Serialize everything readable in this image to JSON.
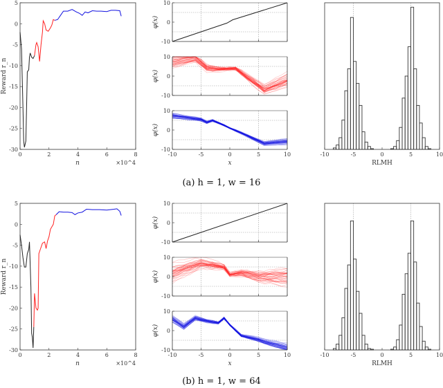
{
  "captions": [
    "(a) h = 1, w = 16",
    "(b) h = 1, w = 64"
  ],
  "colors": {
    "initial": "#222222",
    "middle": "#ff2020",
    "final": "#1010e0",
    "hist": "#333333"
  },
  "chart_data": [
    {
      "type": "line",
      "panel": "reward-a",
      "xlabel": "n",
      "ylabel": "Reward r_n",
      "x_multiplier": "×10^4",
      "xlim": [
        0,
        8
      ],
      "ylim": [
        -30,
        5
      ],
      "xticks": [
        0,
        2,
        4,
        6,
        8
      ],
      "yticks": [
        5,
        0,
        -5,
        -10,
        -15,
        -20,
        -25,
        -30
      ],
      "series": [
        {
          "color": "initial",
          "points": [
            [
              0,
              -2
            ],
            [
              0.1,
              -6
            ],
            [
              0.2,
              -20
            ],
            [
              0.25,
              -28
            ],
            [
              0.3,
              -29.5
            ],
            [
              0.4,
              -28
            ],
            [
              0.45,
              -20
            ],
            [
              0.5,
              -11.5
            ],
            [
              0.6,
              -11
            ],
            [
              0.65,
              -8
            ],
            [
              0.7,
              -7
            ],
            [
              0.8,
              -8
            ],
            [
              0.9,
              -8.3
            ],
            [
              1.0,
              -7.6
            ]
          ]
        },
        {
          "color": "middle",
          "points": [
            [
              1.0,
              -7.6
            ],
            [
              1.1,
              -5
            ],
            [
              1.15,
              -4.5
            ],
            [
              1.25,
              -5.5
            ],
            [
              1.35,
              -9
            ],
            [
              1.45,
              -5
            ],
            [
              1.55,
              -2
            ],
            [
              1.6,
              0.7
            ],
            [
              1.7,
              0
            ],
            [
              1.8,
              -1.5
            ],
            [
              1.95,
              -1.8
            ],
            [
              2.1,
              -1
            ],
            [
              2.2,
              -0.3
            ],
            [
              2.3,
              1
            ],
            [
              2.4,
              0.8
            ]
          ]
        },
        {
          "color": "final",
          "points": [
            [
              2.4,
              0.8
            ],
            [
              2.6,
              1
            ],
            [
              2.8,
              2
            ],
            [
              3.0,
              3
            ],
            [
              3.3,
              3
            ],
            [
              3.6,
              3.4
            ],
            [
              3.9,
              2.8
            ],
            [
              4.1,
              2.5
            ],
            [
              4.3,
              2
            ],
            [
              4.5,
              2.8
            ],
            [
              4.7,
              2.6
            ],
            [
              5.0,
              3.1
            ],
            [
              5.3,
              3
            ],
            [
              5.6,
              3
            ],
            [
              6.0,
              2.9
            ],
            [
              6.3,
              3.2
            ],
            [
              6.6,
              3.2
            ],
            [
              6.9,
              3.1
            ],
            [
              7.0,
              1.8
            ]
          ]
        }
      ]
    },
    {
      "type": "line",
      "panel": "phi-a",
      "xlabel": "x",
      "ylabel": "φ(x)",
      "xlim": [
        -10,
        10
      ],
      "ylim": [
        -10,
        10
      ],
      "xticks": [
        -10,
        -5,
        0,
        5,
        10
      ],
      "yticks": [
        10,
        0,
        -10
      ],
      "subplots": [
        {
          "color": "initial",
          "spread": 0,
          "mean": [
            [
              -10,
              -10
            ],
            [
              -0.5,
              -0.5
            ],
            [
              0.5,
              1.2
            ],
            [
              10,
              10
            ]
          ]
        },
        {
          "color": "middle",
          "spread": 3,
          "mean": [
            [
              -10,
              7
            ],
            [
              -6,
              9
            ],
            [
              -4,
              4
            ],
            [
              -2,
              3.5
            ],
            [
              1,
              3.8
            ],
            [
              6,
              -7
            ],
            [
              10,
              -2
            ]
          ]
        },
        {
          "color": "final",
          "spread": 1.2,
          "mean": [
            [
              -10,
              7.5
            ],
            [
              -5,
              5.5
            ],
            [
              -4,
              4
            ],
            [
              -3,
              5
            ],
            [
              -1,
              2.5
            ],
            [
              0,
              1
            ],
            [
              2,
              -1.5
            ],
            [
              6,
              -7
            ],
            [
              10,
              -6
            ]
          ]
        }
      ]
    },
    {
      "type": "bar",
      "panel": "hist-a",
      "xlabel": "RLMH",
      "xlim": [
        -10,
        10
      ],
      "xticks": [
        -10,
        -5,
        0,
        5,
        10
      ],
      "bin_start": -8.5,
      "bin_width": 0.5,
      "values": [
        0.01,
        0.03,
        0.08,
        0.2,
        0.4,
        0.55,
        0.9,
        0.6,
        0.45,
        0.3,
        0.12,
        0.05,
        0.02,
        0.005,
        0,
        0,
        0,
        0,
        0,
        0,
        0.005,
        0.02,
        0.06,
        0.15,
        0.35,
        0.5,
        0.7,
        0.97,
        0.55,
        0.3,
        0.18,
        0.08,
        0.02,
        0.005
      ]
    },
    {
      "type": "line",
      "panel": "reward-b",
      "xlabel": "n",
      "ylabel": "Reward r_n",
      "x_multiplier": "×10^4",
      "xlim": [
        0,
        8
      ],
      "ylim": [
        -30,
        5
      ],
      "xticks": [
        0,
        2,
        4,
        6,
        8
      ],
      "yticks": [
        5,
        0,
        -5,
        -10,
        -15,
        -20,
        -25,
        -30
      ],
      "series": [
        {
          "color": "initial",
          "points": [
            [
              0,
              -2.5
            ],
            [
              0.1,
              -5
            ],
            [
              0.2,
              -8
            ],
            [
              0.3,
              -10.2
            ],
            [
              0.4,
              -10.2
            ],
            [
              0.5,
              -7
            ],
            [
              0.6,
              -6
            ],
            [
              0.65,
              -4.2
            ],
            [
              0.75,
              -15
            ],
            [
              0.8,
              -26
            ],
            [
              0.85,
              -27
            ],
            [
              0.9,
              -29.5
            ],
            [
              0.95,
              -24.5
            ]
          ]
        },
        {
          "color": "middle",
          "points": [
            [
              0.95,
              -24.5
            ],
            [
              1.0,
              -16.5
            ],
            [
              1.1,
              -20
            ],
            [
              1.2,
              -20.5
            ],
            [
              1.25,
              -20
            ],
            [
              1.3,
              -7
            ],
            [
              1.4,
              -6
            ],
            [
              1.55,
              -4.5
            ],
            [
              1.7,
              -4.2
            ],
            [
              1.8,
              -5.8
            ],
            [
              1.9,
              -4
            ],
            [
              2.0,
              -3
            ],
            [
              2.1,
              -1.2
            ],
            [
              2.3,
              0
            ],
            [
              2.4,
              2
            ],
            [
              2.5,
              2.3
            ]
          ]
        },
        {
          "color": "final",
          "points": [
            [
              2.5,
              2.3
            ],
            [
              2.7,
              3
            ],
            [
              3.0,
              2.9
            ],
            [
              3.3,
              2.9
            ],
            [
              3.6,
              2.8
            ],
            [
              3.8,
              2.3
            ],
            [
              4.0,
              2.7
            ],
            [
              4.3,
              2.9
            ],
            [
              4.6,
              3.6
            ],
            [
              5.0,
              3.5
            ],
            [
              5.5,
              3.5
            ],
            [
              6.0,
              3.4
            ],
            [
              6.5,
              3.6
            ],
            [
              6.7,
              3.7
            ],
            [
              6.9,
              3.1
            ],
            [
              7.0,
              2.1
            ]
          ]
        }
      ]
    },
    {
      "type": "line",
      "panel": "phi-b",
      "xlabel": "x",
      "ylabel": "φ(x)",
      "xlim": [
        -10,
        10
      ],
      "ylim": [
        -10,
        10
      ],
      "xticks": [
        -10,
        -5,
        0,
        5,
        10
      ],
      "yticks": [
        10,
        0,
        -10
      ],
      "subplots": [
        {
          "color": "initial",
          "spread": 0,
          "mean": [
            [
              -10,
              -10
            ],
            [
              10,
              10
            ]
          ]
        },
        {
          "color": "middle",
          "spread": 4,
          "mean": [
            [
              -10,
              2
            ],
            [
              -5,
              7
            ],
            [
              -3,
              6
            ],
            [
              -1,
              5
            ],
            [
              0,
              1
            ],
            [
              2,
              2
            ],
            [
              5,
              0
            ],
            [
              6,
              0
            ],
            [
              10,
              0
            ]
          ]
        },
        {
          "color": "final",
          "spread": 1.5,
          "mean": [
            [
              -10,
              6
            ],
            [
              -8,
              2
            ],
            [
              -6,
              6.5
            ],
            [
              -4,
              5
            ],
            [
              -2,
              4
            ],
            [
              -1,
              6.5
            ],
            [
              0,
              3
            ],
            [
              2,
              -2.5
            ],
            [
              5,
              -4.5
            ],
            [
              6,
              -5.5
            ],
            [
              10,
              -8.5
            ]
          ]
        }
      ]
    },
    {
      "type": "bar",
      "panel": "hist-b",
      "xlabel": "RLMH",
      "xlim": [
        -10,
        10
      ],
      "xticks": [
        -10,
        -5,
        0,
        5,
        10
      ],
      "bin_start": -8.5,
      "bin_width": 0.5,
      "values": [
        0.01,
        0.04,
        0.1,
        0.22,
        0.42,
        0.58,
        0.88,
        0.62,
        0.4,
        0.25,
        0.1,
        0.04,
        0.01,
        0.005,
        0,
        0,
        0,
        0,
        0,
        0,
        0.005,
        0.02,
        0.07,
        0.17,
        0.38,
        0.52,
        0.66,
        0.88,
        0.6,
        0.32,
        0.16,
        0.06,
        0.02,
        0.005
      ]
    }
  ]
}
